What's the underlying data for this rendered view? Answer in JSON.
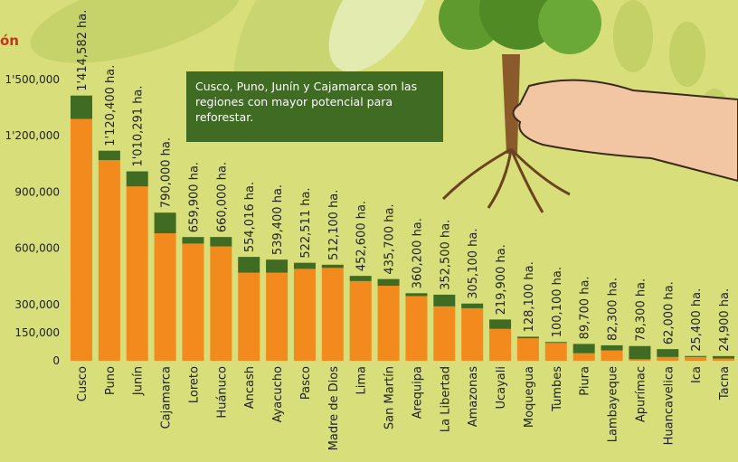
{
  "chart_data": {
    "type": "stacked_bar",
    "title": "ón",
    "annotation": "Cusco, Puno, Junín y Cajamarca son las regiones con mayor potencial para reforestar.",
    "categories": [
      "Cusco",
      "Puno",
      "Junín",
      "Cajamarca",
      "Loreto",
      "Huánuco",
      "Ancash",
      "Ayacucho",
      "Pasco",
      "Madre de Dios",
      "Lima",
      "San Martín",
      "Arequipa",
      "La Libertad",
      "Amazonas",
      "Ucayali",
      "Moquegua",
      "Tumbes",
      "Piura",
      "Lambayeque",
      "Apurímac",
      "Huancavelica",
      "Ica",
      "Tacna"
    ],
    "series": [
      {
        "color": "#f28a1e",
        "values": [
          1290000,
          1070000,
          930000,
          680000,
          625000,
          610000,
          470000,
          470000,
          490000,
          495000,
          425000,
          400000,
          345000,
          290000,
          280000,
          170000,
          120000,
          95000,
          40000,
          55000,
          8000,
          20000,
          20000,
          12000
        ]
      },
      {
        "color": "#3f6b22",
        "values": [
          124582,
          50400,
          80291,
          110000,
          34900,
          50000,
          84016,
          69400,
          32511,
          17100,
          27600,
          35700,
          15200,
          62500,
          25100,
          49900,
          8100,
          5100,
          49700,
          27300,
          70300,
          42000,
          5400,
          12900
        ]
      }
    ],
    "totals": [
      1414582,
      1120400,
      1010291,
      790000,
      659900,
      660000,
      554016,
      539400,
      522511,
      512100,
      452600,
      435700,
      360200,
      352500,
      305100,
      219900,
      128100,
      100100,
      89700,
      82300,
      78300,
      62000,
      25400,
      24900
    ],
    "total_labels": [
      "1'414,582 ha.",
      "1'120,400 ha.",
      "1'010,291 ha.",
      "790,000 ha.",
      "659,900 ha.",
      "660,000 ha.",
      "554,016 ha.",
      "539,400 ha.",
      "522,511 ha.",
      "512,100 ha.",
      "452,600 ha.",
      "435,700 ha.",
      "360,200 ha.",
      "352,500 ha.",
      "305,100 ha.",
      "219,900 ha.",
      "128,100 ha.",
      "100,100 ha.",
      "89,700 ha.",
      "82,300 ha.",
      "78,300 ha.",
      "62,000 ha.",
      "25,400 ha.",
      "24,900 ha."
    ],
    "ylim": [
      0,
      1500000
    ],
    "yticks": [
      0,
      {
        "value": 150000,
        "label": "150,000"
      },
      {
        "value": 300000,
        "label": "300,000"
      },
      {
        "value": 600000,
        "label": "600,000"
      },
      {
        "value": 900000,
        "label": "900,000"
      },
      {
        "value": 1200000,
        "label": "1'200,000"
      },
      {
        "value": 1500000,
        "label": "1'500,000"
      }
    ]
  }
}
